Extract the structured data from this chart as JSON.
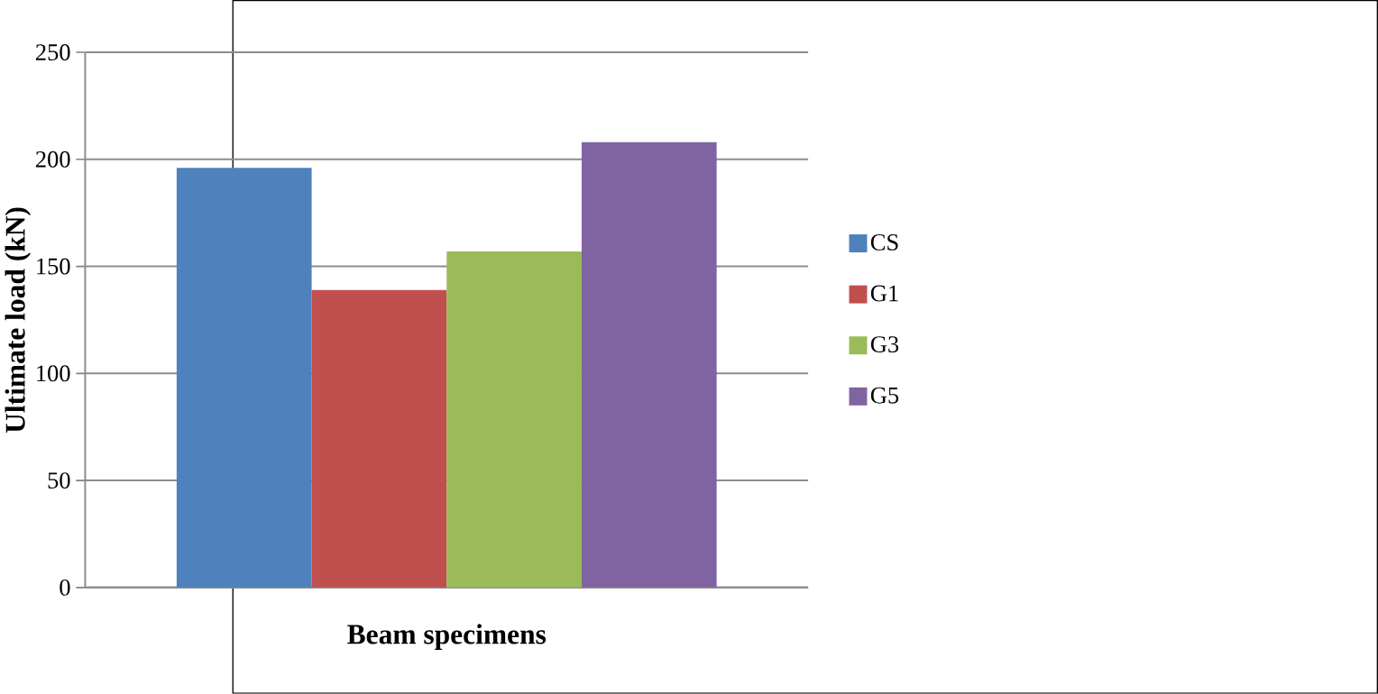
{
  "chart_data": {
    "type": "bar",
    "xlabel": "Beam specimens",
    "ylabel": "Ultimate load (kN)",
    "categories": [
      null
    ],
    "series": [
      {
        "name": "CS",
        "color": "#4f81bd",
        "values": [
          196
        ]
      },
      {
        "name": "G1",
        "color": "#c0504d",
        "values": [
          139
        ]
      },
      {
        "name": "G3",
        "color": "#9bbb59",
        "values": [
          157
        ]
      },
      {
        "name": "G5",
        "color": "#8064a2",
        "values": [
          208
        ]
      }
    ],
    "ylim": [
      0,
      250
    ],
    "yticks": [
      0,
      50,
      100,
      150,
      200,
      250
    ],
    "grid": "y",
    "legend": "right"
  }
}
